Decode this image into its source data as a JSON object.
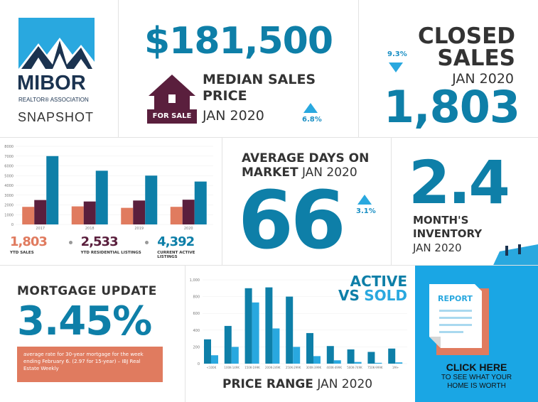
{
  "logo": {
    "brand": "MIBOR",
    "sub": "REALTOR® ASSOCIATION",
    "label": "SNAPSHOT"
  },
  "median": {
    "value": "$181,500",
    "title_line1": "MEDIAN SALES",
    "title_line2": "PRICE",
    "period": "JAN 2020",
    "change": "6.8%",
    "for_sale": "FOR SALE",
    "direction": "up"
  },
  "closed": {
    "title_line1": "CLOSED",
    "title_line2": "SALES",
    "period": "JAN 2020",
    "value": "1,803",
    "change": "9.3%",
    "direction": "down"
  },
  "ytd_chart": {
    "stats": [
      {
        "value": "1,803",
        "label": "YTD SALES"
      },
      {
        "value": "2,533",
        "label": "YTD RESIDENTIAL LISTINGS"
      },
      {
        "value": "4,392",
        "label": "CURRENT ACTIVE LISTINGS"
      }
    ]
  },
  "days": {
    "title_line1": "AVERAGE DAYS ON",
    "title_line2": "MARKET",
    "period": "JAN 2020",
    "value": "66",
    "change": "3.1%",
    "direction": "up"
  },
  "inventory": {
    "value": "2.4",
    "title_line1": "MONTH'S",
    "title_line2": "INVENTORY",
    "period": "JAN 2020"
  },
  "mortgage": {
    "title": "MORTGAGE UPDATE",
    "value": "3.45%",
    "note": "average rate for 30-year mortgage for the week ending February 6. (2.97 for 15-year) – IBJ Real Estate Weekly"
  },
  "price_chart": {
    "title": "PRICE RANGE",
    "period": "JAN 2020",
    "active": "ACTIVE",
    "vs": "VS",
    "sold": "SOLD"
  },
  "report": {
    "doc_label": "REPORT",
    "cta": "CLICK HERE",
    "sub_line1": "TO SEE WHAT YOUR",
    "sub_line2": "HOME IS WORTH"
  },
  "colors": {
    "teal": "#0e7fa8",
    "light_blue": "#29a8df",
    "salmon": "#e07b5f",
    "maroon": "#5a1f3d",
    "bright_blue": "#1aa6e4"
  },
  "chart_data": [
    {
      "type": "bar",
      "categories": [
        "2017",
        "2018",
        "2019",
        "2020"
      ],
      "series": [
        {
          "values": [
            1800,
            1850,
            1700,
            1803
          ]
        },
        {
          "values": [
            2500,
            2350,
            2450,
            2533
          ]
        },
        {
          "values": [
            7000,
            5500,
            5000,
            4392
          ]
        }
      ],
      "ylim": [
        0,
        8000
      ],
      "yticks": [
        "0",
        "1000",
        "2000",
        "3000",
        "4000",
        "5000",
        "6000",
        "7000",
        "8000"
      ]
    },
    {
      "type": "bar",
      "categories": [
        "<100K",
        "100K-149K",
        "150K-199K",
        "200K-249K",
        "250K-299K",
        "300K-399K",
        "400K-499K",
        "500K-749K",
        "750K-999K",
        "1M+"
      ],
      "series": [
        {
          "name": "ACTIVE",
          "values": [
            290,
            450,
            900,
            910,
            800,
            365,
            210,
            170,
            140,
            180
          ]
        },
        {
          "name": "SOLD",
          "values": [
            100,
            200,
            730,
            420,
            200,
            90,
            40,
            20,
            10,
            15
          ]
        }
      ],
      "ylim": [
        0,
        1000
      ],
      "yticks": [
        "0",
        "200",
        "400",
        "600",
        "800",
        "1,000"
      ]
    }
  ]
}
